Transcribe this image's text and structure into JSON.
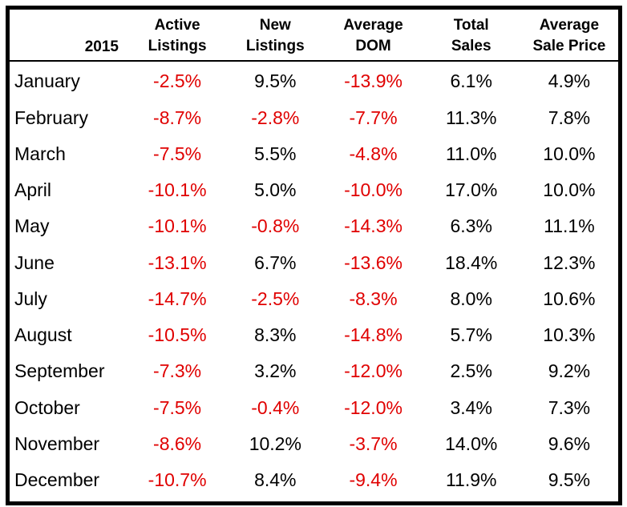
{
  "table": {
    "year_label": "2015",
    "column_headers": [
      [
        "Active",
        "Listings"
      ],
      [
        "New",
        "Listings"
      ],
      [
        "Average",
        "DOM"
      ],
      [
        "Total",
        "Sales"
      ],
      [
        "Average",
        "Sale Price"
      ]
    ],
    "rows": [
      {
        "month": "January",
        "values": [
          "-2.5%",
          "9.5%",
          "-13.9%",
          "6.1%",
          "4.9%"
        ]
      },
      {
        "month": "February",
        "values": [
          "-8.7%",
          "-2.8%",
          "-7.7%",
          "11.3%",
          "7.8%"
        ]
      },
      {
        "month": "March",
        "values": [
          "-7.5%",
          "5.5%",
          "-4.8%",
          "11.0%",
          "10.0%"
        ]
      },
      {
        "month": "April",
        "values": [
          "-10.1%",
          "5.0%",
          "-10.0%",
          "17.0%",
          "10.0%"
        ]
      },
      {
        "month": "May",
        "values": [
          "-10.1%",
          "-0.8%",
          "-14.3%",
          "6.3%",
          "11.1%"
        ]
      },
      {
        "month": "June",
        "values": [
          "-13.1%",
          "6.7%",
          "-13.6%",
          "18.4%",
          "12.3%"
        ]
      },
      {
        "month": "July",
        "values": [
          "-14.7%",
          "-2.5%",
          "-8.3%",
          "8.0%",
          "10.6%"
        ]
      },
      {
        "month": "August",
        "values": [
          "-10.5%",
          "8.3%",
          "-14.8%",
          "5.7%",
          "10.3%"
        ]
      },
      {
        "month": "September",
        "values": [
          "-7.3%",
          "3.2%",
          "-12.0%",
          "2.5%",
          "9.2%"
        ]
      },
      {
        "month": "October",
        "values": [
          "-7.5%",
          "-0.4%",
          "-12.0%",
          "3.4%",
          "7.3%"
        ]
      },
      {
        "month": "November",
        "values": [
          "-8.6%",
          "10.2%",
          "-3.7%",
          "14.0%",
          "9.6%"
        ]
      },
      {
        "month": "December",
        "values": [
          "-10.7%",
          "8.4%",
          "-9.4%",
          "11.9%",
          "9.5%"
        ]
      }
    ]
  },
  "colors": {
    "negative_value": "#e00000",
    "text": "#000000",
    "border": "#000000",
    "background": "#ffffff"
  },
  "chart_data": {
    "type": "table",
    "title": "2015",
    "categories": [
      "January",
      "February",
      "March",
      "April",
      "May",
      "June",
      "July",
      "August",
      "September",
      "October",
      "November",
      "December"
    ],
    "series": [
      {
        "name": "Active Listings",
        "values": [
          -2.5,
          -8.7,
          -7.5,
          -10.1,
          -10.1,
          -13.1,
          -14.7,
          -10.5,
          -7.3,
          -7.5,
          -8.6,
          -10.7
        ]
      },
      {
        "name": "New Listings",
        "values": [
          9.5,
          -2.8,
          5.5,
          5.0,
          -0.8,
          6.7,
          -2.5,
          8.3,
          3.2,
          -0.4,
          10.2,
          8.4
        ]
      },
      {
        "name": "Average DOM",
        "values": [
          -13.9,
          -7.7,
          -4.8,
          -10.0,
          -14.3,
          -13.6,
          -8.3,
          -14.8,
          -12.0,
          -12.0,
          -3.7,
          -9.4
        ]
      },
      {
        "name": "Total Sales",
        "values": [
          6.1,
          11.3,
          11.0,
          17.0,
          6.3,
          18.4,
          8.0,
          5.7,
          2.5,
          3.4,
          14.0,
          11.9
        ]
      },
      {
        "name": "Average Sale Price",
        "values": [
          4.9,
          7.8,
          10.0,
          10.0,
          11.1,
          12.3,
          10.6,
          10.3,
          9.2,
          7.3,
          9.6,
          9.5
        ]
      }
    ],
    "unit": "%",
    "notes": "Negative values rendered in red; grid has outer border and header separator only"
  }
}
